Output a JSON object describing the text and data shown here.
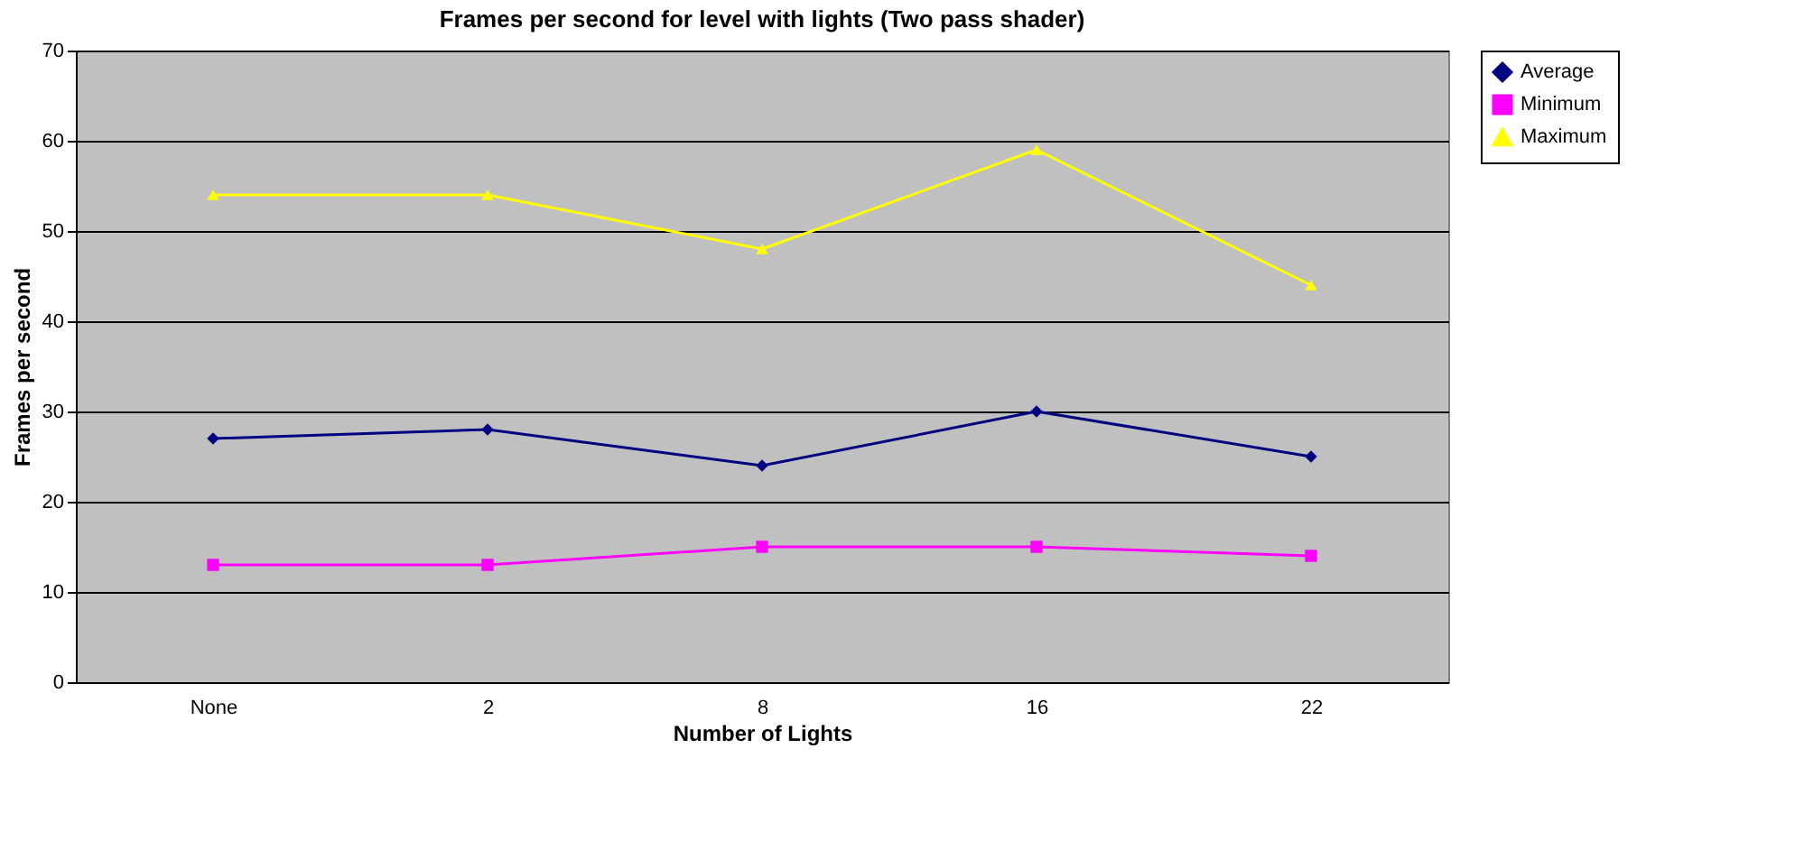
{
  "chart_data": {
    "type": "line",
    "title": "Frames per second for level with lights (Two pass shader)",
    "xlabel": "Number of Lights",
    "ylabel": "Frames per second",
    "categories": [
      "None",
      "2",
      "8",
      "16",
      "22"
    ],
    "series": [
      {
        "name": "Average",
        "color": "#000080",
        "marker": "diamond",
        "values": [
          27,
          28,
          24,
          30,
          25
        ]
      },
      {
        "name": "Minimum",
        "color": "#ff00ff",
        "marker": "square",
        "values": [
          13,
          13,
          15,
          15,
          14
        ]
      },
      {
        "name": "Maximum",
        "color": "#ffff00",
        "marker": "triangle",
        "values": [
          54,
          54,
          48,
          59,
          44
        ]
      }
    ],
    "ylim": [
      0,
      70
    ],
    "yticks": [
      0,
      10,
      20,
      30,
      40,
      50,
      60,
      70
    ],
    "grid": "y",
    "legend": "right",
    "line_style": "solid"
  }
}
